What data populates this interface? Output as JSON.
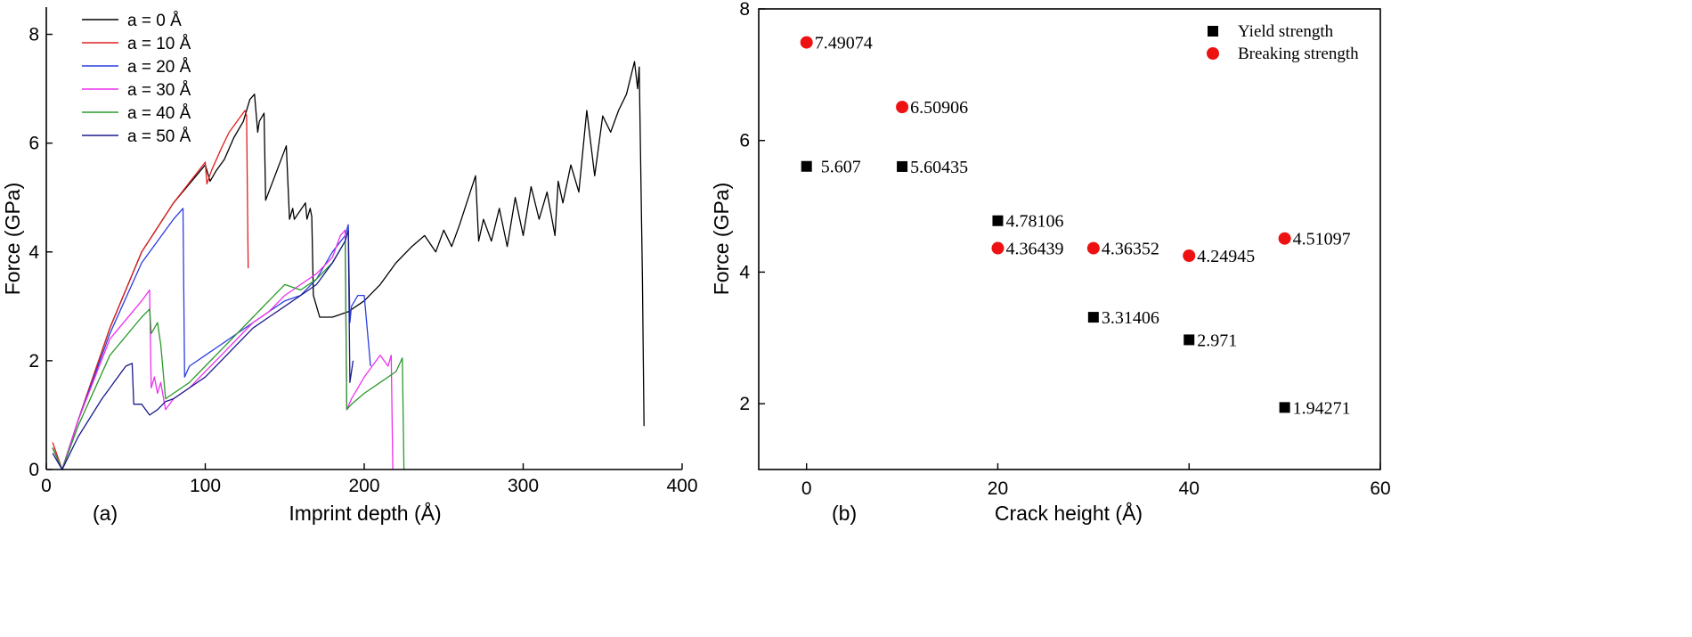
{
  "chart_data": [
    {
      "type": "line",
      "panel_label": "(a)",
      "xlabel": "Imprint depth (Å)",
      "ylabel": "Force (GPa)",
      "xlim": [
        0,
        400
      ],
      "ylim": [
        0,
        8.5
      ],
      "x_ticks": [
        0,
        100,
        200,
        300,
        400
      ],
      "y_ticks": [
        0,
        2,
        4,
        6,
        8
      ],
      "legend_position": "top-left",
      "series": [
        {
          "name": "a = 0 Å",
          "color": "#000000",
          "x": [
            4,
            10,
            20,
            40,
            60,
            80,
            100,
            103,
            107,
            112,
            118,
            124,
            128,
            131,
            133,
            134,
            137,
            138,
            151,
            153,
            155,
            156,
            163,
            164,
            166,
            167,
            168,
            172,
            180,
            190,
            200,
            210,
            220,
            230,
            238,
            245,
            250,
            255,
            260,
            270,
            272,
            275,
            280,
            285,
            290,
            295,
            300,
            305,
            310,
            315,
            320,
            322,
            325,
            330,
            335,
            340,
            345,
            350,
            355,
            360,
            365,
            370,
            372,
            373,
            375,
            376
          ],
          "y": [
            0.4,
            0,
            0.9,
            2.6,
            4.0,
            4.9,
            5.6,
            5.3,
            5.5,
            5.7,
            6.1,
            6.4,
            6.8,
            6.9,
            6.2,
            6.4,
            6.55,
            4.95,
            5.95,
            4.6,
            4.8,
            4.6,
            4.9,
            4.6,
            4.8,
            4.65,
            3.2,
            2.8,
            2.8,
            2.9,
            3.1,
            3.4,
            3.8,
            4.1,
            4.3,
            4.0,
            4.4,
            4.1,
            4.5,
            5.4,
            4.2,
            4.6,
            4.2,
            4.8,
            4.1,
            5.0,
            4.3,
            5.2,
            4.6,
            5.1,
            4.3,
            5.3,
            4.9,
            5.6,
            5.1,
            6.6,
            5.4,
            6.5,
            6.2,
            6.6,
            6.9,
            7.5,
            7.0,
            7.4,
            3.5,
            0.8
          ]
        },
        {
          "name": "a = 10 Å",
          "color": "#e02020",
          "x": [
            4,
            10,
            20,
            40,
            60,
            80,
            100,
            101,
            104,
            110,
            115,
            120,
            125,
            126,
            127
          ],
          "y": [
            0.5,
            0,
            0.9,
            2.6,
            4.0,
            4.9,
            5.65,
            5.25,
            5.5,
            5.9,
            6.2,
            6.4,
            6.6,
            6.5,
            3.7
          ]
        },
        {
          "name": "a = 20 Å",
          "color": "#2a3de0",
          "x": [
            4,
            10,
            20,
            40,
            60,
            80,
            86,
            87,
            90,
            100,
            110,
            120,
            130,
            140,
            150,
            160,
            170,
            180,
            188,
            190,
            191,
            192,
            196,
            200,
            204
          ],
          "y": [
            0.4,
            0,
            0.9,
            2.5,
            3.8,
            4.6,
            4.8,
            1.7,
            1.9,
            2.1,
            2.3,
            2.5,
            2.7,
            2.9,
            3.1,
            3.2,
            3.5,
            4.0,
            4.3,
            4.5,
            2.7,
            3.0,
            3.2,
            3.2,
            1.9
          ]
        },
        {
          "name": "a = 30 Å",
          "color": "#ee30ee",
          "x": [
            4,
            10,
            20,
            40,
            60,
            65,
            66,
            68,
            70,
            72,
            75,
            80,
            90,
            100,
            110,
            120,
            130,
            140,
            150,
            160,
            170,
            180,
            185,
            188,
            189,
            192,
            196,
            200,
            205,
            210,
            215,
            217,
            218
          ],
          "y": [
            0.4,
            0,
            0.9,
            2.4,
            3.1,
            3.3,
            1.5,
            1.7,
            1.4,
            1.6,
            1.1,
            1.3,
            1.5,
            1.8,
            2.1,
            2.4,
            2.7,
            2.9,
            3.2,
            3.4,
            3.6,
            3.9,
            4.3,
            4.4,
            1.1,
            1.3,
            1.5,
            1.7,
            1.9,
            2.1,
            1.9,
            2.1,
            0
          ]
        },
        {
          "name": "a = 40 Å",
          "color": "#2a9a2a",
          "x": [
            4,
            10,
            20,
            40,
            60,
            65,
            66,
            70,
            72,
            75,
            80,
            90,
            100,
            110,
            120,
            130,
            140,
            150,
            160,
            170,
            180,
            188,
            189,
            192,
            200,
            210,
            220,
            224,
            225
          ],
          "y": [
            0.4,
            0,
            0.8,
            2.1,
            2.8,
            2.95,
            2.5,
            2.7,
            2.3,
            1.3,
            1.4,
            1.6,
            1.9,
            2.2,
            2.5,
            2.8,
            3.1,
            3.4,
            3.3,
            3.5,
            3.8,
            4.2,
            1.1,
            1.2,
            1.4,
            1.6,
            1.8,
            2.05,
            0
          ]
        },
        {
          "name": "a = 50 Å",
          "color": "#1a1a8a",
          "x": [
            4,
            10,
            20,
            35,
            50,
            54,
            55,
            60,
            65,
            70,
            75,
            80,
            90,
            100,
            110,
            120,
            130,
            140,
            150,
            160,
            170,
            180,
            188,
            190,
            191,
            193
          ],
          "y": [
            0.3,
            0,
            0.6,
            1.3,
            1.9,
            1.95,
            1.2,
            1.2,
            1.0,
            1.1,
            1.25,
            1.3,
            1.5,
            1.7,
            2.0,
            2.3,
            2.6,
            2.8,
            3.0,
            3.2,
            3.4,
            3.8,
            4.2,
            4.4,
            1.6,
            2.0
          ]
        }
      ]
    },
    {
      "type": "scatter",
      "panel_label": "(b)",
      "xlabel": "Crack height (Å)",
      "ylabel": "Force (GPa)",
      "xlim": [
        -5,
        60
      ],
      "ylim": [
        1,
        8
      ],
      "x_ticks": [
        0,
        20,
        40,
        60
      ],
      "y_ticks": [
        2,
        4,
        6,
        8
      ],
      "legend_position": "top-right",
      "series": [
        {
          "name": "Yield strength",
          "marker": "square",
          "color": "#000000",
          "x": [
            0,
            10,
            20,
            30,
            40,
            50
          ],
          "y": [
            5.607,
            5.60435,
            4.78106,
            3.31406,
            2.971,
            1.94271
          ],
          "labels": [
            "5.607",
            "5.60435",
            "4.78106",
            "3.31406",
            "2.971",
            "1.94271"
          ]
        },
        {
          "name": "Breaking strength",
          "marker": "circle",
          "color": "#ee1111",
          "x": [
            0,
            10,
            20,
            30,
            40,
            50
          ],
          "y": [
            7.49074,
            6.50906,
            4.36439,
            4.36352,
            4.24945,
            4.51097
          ],
          "labels": [
            "7.49074",
            "6.50906",
            "4.36439",
            "4.36352",
            "4.24945",
            "4.51097"
          ]
        }
      ]
    }
  ]
}
